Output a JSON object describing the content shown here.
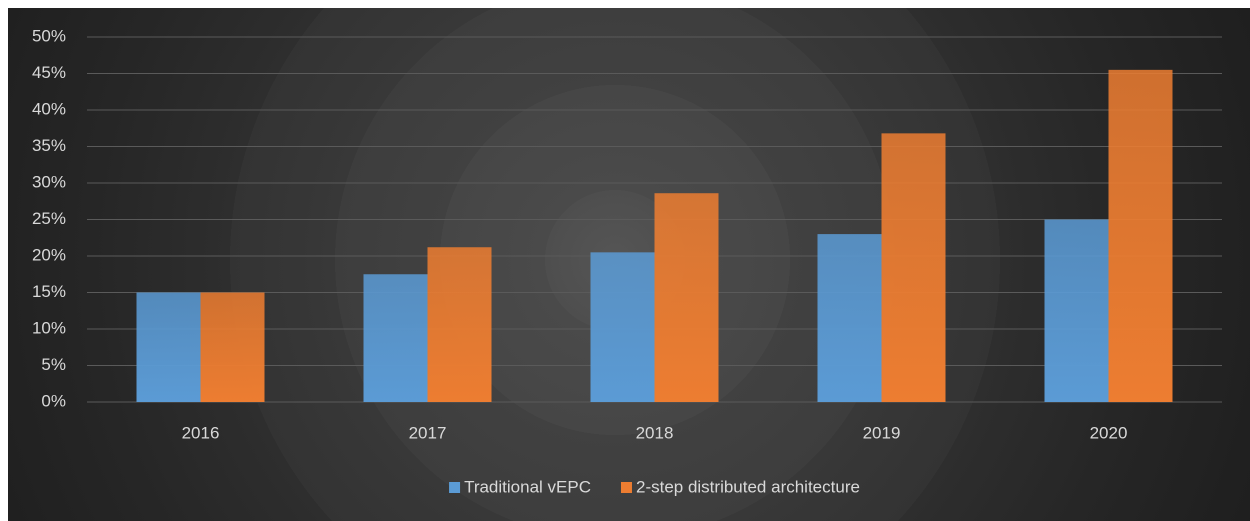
{
  "chart_data": {
    "type": "bar",
    "categories": [
      "2016",
      "2017",
      "2018",
      "2019",
      "2020"
    ],
    "series": [
      {
        "name": "Traditional vEPC",
        "color": "#5b9bd5",
        "values": [
          15,
          17.5,
          20.5,
          23,
          25
        ]
      },
      {
        "name": "2-step distributed architecture",
        "color": "#ed7d31",
        "values": [
          15,
          21.2,
          28.6,
          36.8,
          45.5
        ]
      }
    ],
    "ylim": [
      0,
      50
    ],
    "yticks": [
      {
        "value": 0,
        "label": "0%"
      },
      {
        "value": 5,
        "label": "5%"
      },
      {
        "value": 10,
        "label": "10%"
      },
      {
        "value": 15,
        "label": "15%"
      },
      {
        "value": 20,
        "label": "20%"
      },
      {
        "value": 25,
        "label": "25%"
      },
      {
        "value": 30,
        "label": "30%"
      },
      {
        "value": 35,
        "label": "35%"
      },
      {
        "value": 40,
        "label": "40%"
      },
      {
        "value": 45,
        "label": "45%"
      },
      {
        "value": 50,
        "label": "50%"
      }
    ],
    "grid": true,
    "legend": "bottom"
  }
}
